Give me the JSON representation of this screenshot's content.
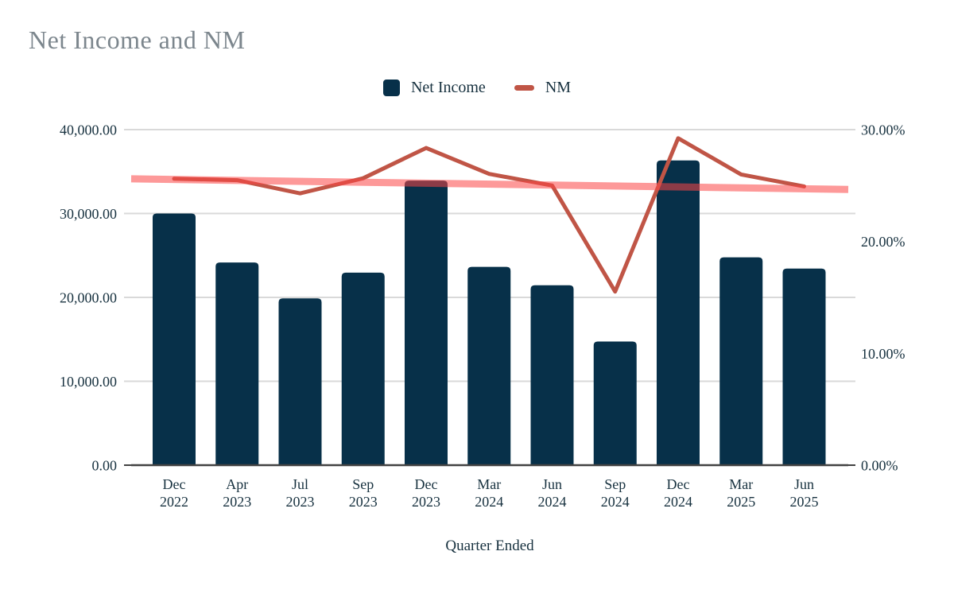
{
  "title": "Net Income and NM",
  "legend": {
    "items": [
      {
        "label": "Net Income",
        "swatch": "square-swatch",
        "color": "#073049"
      },
      {
        "label": "NM",
        "swatch": "dash-swatch",
        "color": "#c05546"
      }
    ]
  },
  "axes": {
    "left": {
      "tick_labels": [
        "40,000.00",
        "30,000.00",
        "20,000.00",
        "10,000.00",
        "0.00"
      ],
      "tick_values": [
        40000,
        30000,
        20000,
        10000,
        0
      ]
    },
    "right": {
      "tick_labels": [
        "30.00%",
        "20.00%",
        "10.00%",
        "0.00%"
      ],
      "tick_values": [
        30,
        20,
        10,
        0
      ]
    },
    "x": {
      "title": "Quarter Ended"
    }
  },
  "colors": {
    "bar": "#073049",
    "line": "#c05546",
    "trendline": "rgba(252,70,70,0.55)",
    "grid": "#d9d9d9",
    "axis_line": "#424242",
    "axis_text": "#17313f",
    "title_text": "#7c868d",
    "background": "#ffffff"
  },
  "chart_data": {
    "type": "bar",
    "subtype": "combo-bar-line-dual-axis",
    "title": "Net Income and NM",
    "xlabel": "Quarter Ended",
    "categories": [
      "Dec 2022",
      "Apr 2023",
      "Jul 2023",
      "Sep 2023",
      "Dec 2023",
      "Mar 2024",
      "Jun 2024",
      "Sep 2024",
      "Dec 2024",
      "Mar 2025",
      "Jun 2025"
    ],
    "series": [
      {
        "name": "Net Income",
        "type": "bar",
        "axis": "left",
        "values": [
          29998,
          24160,
          19881,
          22956,
          33916,
          23636,
          21448,
          14736,
          36330,
          24780,
          23434
        ]
      },
      {
        "name": "NM",
        "type": "line",
        "axis": "right",
        "unit": "%",
        "values": [
          25.61,
          25.48,
          24.3,
          25.65,
          28.36,
          26.04,
          25.0,
          15.52,
          29.23,
          25.99,
          24.92
        ]
      },
      {
        "name": "NM linear trendline",
        "type": "trendline",
        "axis": "right",
        "unit": "%",
        "start": 25.6,
        "end": 24.65
      }
    ],
    "ylim_left": [
      0,
      40000
    ],
    "ylim_right": [
      0,
      30
    ],
    "legend_position": "top",
    "grid": "horizontal"
  }
}
